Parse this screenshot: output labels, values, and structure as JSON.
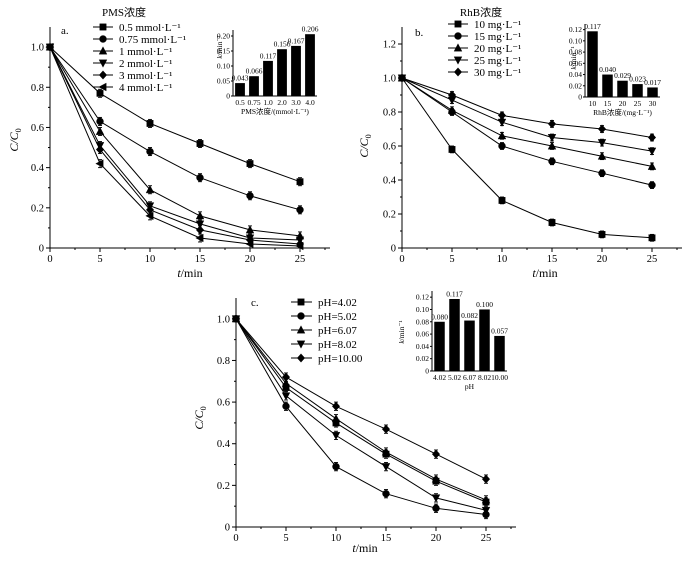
{
  "chart_data": [
    {
      "panel": "a.",
      "type": "line",
      "legend_title": "PMS浓度",
      "xlabel": {
        "symbol": "t",
        "unit": "/min"
      },
      "ylabel": {
        "symbol": "C/C",
        "subscript": "0"
      },
      "xlim": [
        0,
        28
      ],
      "ylim": [
        0,
        1.1
      ],
      "xticks": [
        "0",
        "5",
        "10",
        "15",
        "20",
        "25"
      ],
      "yticks": [
        "0",
        "0.2",
        "0.4",
        "0.6",
        "0.8",
        "1.0"
      ],
      "x": [
        0,
        5,
        10,
        15,
        20,
        25
      ],
      "yerr": 0.02,
      "series": [
        {
          "name": "0.5 mmol·L⁻¹",
          "marker": "square",
          "values": [
            1.0,
            0.77,
            0.62,
            0.52,
            0.42,
            0.33
          ]
        },
        {
          "name": "0.75 mmol·L⁻¹",
          "marker": "circle",
          "values": [
            1.0,
            0.63,
            0.48,
            0.35,
            0.26,
            0.19
          ]
        },
        {
          "name": "1 mmol·L⁻¹",
          "marker": "triangle-up",
          "values": [
            1.0,
            0.58,
            0.29,
            0.16,
            0.09,
            0.06
          ]
        },
        {
          "name": "2 mmol·L⁻¹",
          "marker": "triangle-down",
          "values": [
            1.0,
            0.51,
            0.21,
            0.12,
            0.05,
            0.04
          ]
        },
        {
          "name": "3 mmol·L⁻¹",
          "marker": "diamond",
          "values": [
            1.0,
            0.49,
            0.19,
            0.09,
            0.04,
            0.02
          ]
        },
        {
          "name": "4 mmol·L⁻¹",
          "marker": "triangle-left",
          "values": [
            1.0,
            0.42,
            0.16,
            0.05,
            0.02,
            0.01
          ]
        }
      ],
      "inset": {
        "type": "bar",
        "ylabel": {
          "symbol": "k",
          "unit": "/min⁻¹"
        },
        "xlabel": "PMS浓度/(mmol·L⁻¹)",
        "ylim": [
          0,
          0.22
        ],
        "yticks": [
          "0",
          "0.05",
          "0.10",
          "0.15",
          "0.20"
        ],
        "categories": [
          "0.5",
          "0.75",
          "1.0",
          "2.0",
          "3.0",
          "4.0"
        ],
        "values": [
          0.043,
          0.066,
          0.117,
          0.156,
          0.167,
          0.206
        ],
        "labels": [
          "0.043",
          "0.066",
          "0.117",
          "0.156",
          "0.167",
          "0.206"
        ]
      }
    },
    {
      "panel": "b.",
      "type": "line",
      "legend_title": "RhB浓度",
      "xlabel": {
        "symbol": "t",
        "unit": "/min"
      },
      "ylabel": {
        "symbol": "C/C",
        "subscript": "0"
      },
      "xlim": [
        0,
        28
      ],
      "ylim": [
        0,
        1.3
      ],
      "xticks": [
        "0",
        "5",
        "10",
        "15",
        "20",
        "25"
      ],
      "yticks": [
        "0",
        "0.2",
        "0.4",
        "0.6",
        "0.8",
        "1.0",
        "1.2"
      ],
      "x": [
        0,
        5,
        10,
        15,
        20,
        25
      ],
      "yerr": 0.02,
      "series": [
        {
          "name": "10 mg·L⁻¹",
          "marker": "square",
          "values": [
            1.0,
            0.58,
            0.28,
            0.15,
            0.08,
            0.06
          ]
        },
        {
          "name": "15 mg·L⁻¹",
          "marker": "circle",
          "values": [
            1.0,
            0.8,
            0.6,
            0.51,
            0.44,
            0.37
          ]
        },
        {
          "name": "20 mg·L⁻¹",
          "marker": "triangle-up",
          "values": [
            1.0,
            0.81,
            0.66,
            0.6,
            0.54,
            0.48
          ]
        },
        {
          "name": "25 mg·L⁻¹",
          "marker": "triangle-down",
          "values": [
            1.0,
            0.87,
            0.74,
            0.65,
            0.62,
            0.57
          ]
        },
        {
          "name": "30 mg·L⁻¹",
          "marker": "diamond",
          "values": [
            1.0,
            0.9,
            0.78,
            0.73,
            0.7,
            0.65
          ]
        }
      ],
      "inset": {
        "type": "bar",
        "ylabel": {
          "symbol": "k",
          "unit": "/min⁻¹"
        },
        "xlabel": "RhB浓度/(mg·L⁻¹)",
        "ylim": [
          0,
          0.13
        ],
        "yticks": [
          "0",
          "0.02",
          "0.04",
          "0.06",
          "0.08",
          "0.10",
          "0.12"
        ],
        "categories": [
          "10",
          "15",
          "20",
          "25",
          "30"
        ],
        "values": [
          0.117,
          0.04,
          0.029,
          0.023,
          0.017
        ],
        "labels": [
          "0.117",
          "0.040",
          "0.029",
          "0.023",
          "0.017"
        ]
      }
    },
    {
      "panel": "c.",
      "type": "line",
      "xlabel": {
        "symbol": "t",
        "unit": "/min"
      },
      "ylabel": {
        "symbol": "C/C",
        "subscript": "0"
      },
      "xlim": [
        0,
        28
      ],
      "ylim": [
        0,
        1.1
      ],
      "xticks": [
        "0",
        "5",
        "10",
        "15",
        "20",
        "25"
      ],
      "yticks": [
        "0",
        "0.2",
        "0.4",
        "0.6",
        "0.8",
        "1.0"
      ],
      "x": [
        0,
        5,
        10,
        15,
        20,
        25
      ],
      "yerr": 0.02,
      "series": [
        {
          "name": "pH=4.02",
          "marker": "square",
          "values": [
            1.0,
            0.67,
            0.5,
            0.35,
            0.22,
            0.12
          ]
        },
        {
          "name": "pH=5.02",
          "marker": "circle",
          "values": [
            1.0,
            0.58,
            0.29,
            0.16,
            0.09,
            0.06
          ]
        },
        {
          "name": "pH=6.07",
          "marker": "triangle-up",
          "values": [
            1.0,
            0.69,
            0.52,
            0.36,
            0.23,
            0.13
          ]
        },
        {
          "name": "pH=8.02",
          "marker": "triangle-down",
          "values": [
            1.0,
            0.63,
            0.44,
            0.29,
            0.14,
            0.08
          ]
        },
        {
          "name": "pH=10.00",
          "marker": "diamond",
          "values": [
            1.0,
            0.72,
            0.58,
            0.47,
            0.35,
            0.23
          ]
        }
      ],
      "inset": {
        "type": "bar",
        "ylabel": {
          "symbol": "k",
          "unit": "/min⁻¹"
        },
        "xlabel": "pH",
        "ylim": [
          0,
          0.13
        ],
        "yticks": [
          "0",
          "0.02",
          "0.04",
          "0.06",
          "0.08",
          "0.10",
          "0.12"
        ],
        "categories": [
          "4.02",
          "5.02",
          "6.07",
          "8.02",
          "10.00"
        ],
        "values": [
          0.08,
          0.117,
          0.082,
          0.1,
          0.057
        ],
        "labels": [
          "0.080",
          "0.117",
          "0.082",
          "0.100",
          "0.057"
        ]
      }
    }
  ]
}
